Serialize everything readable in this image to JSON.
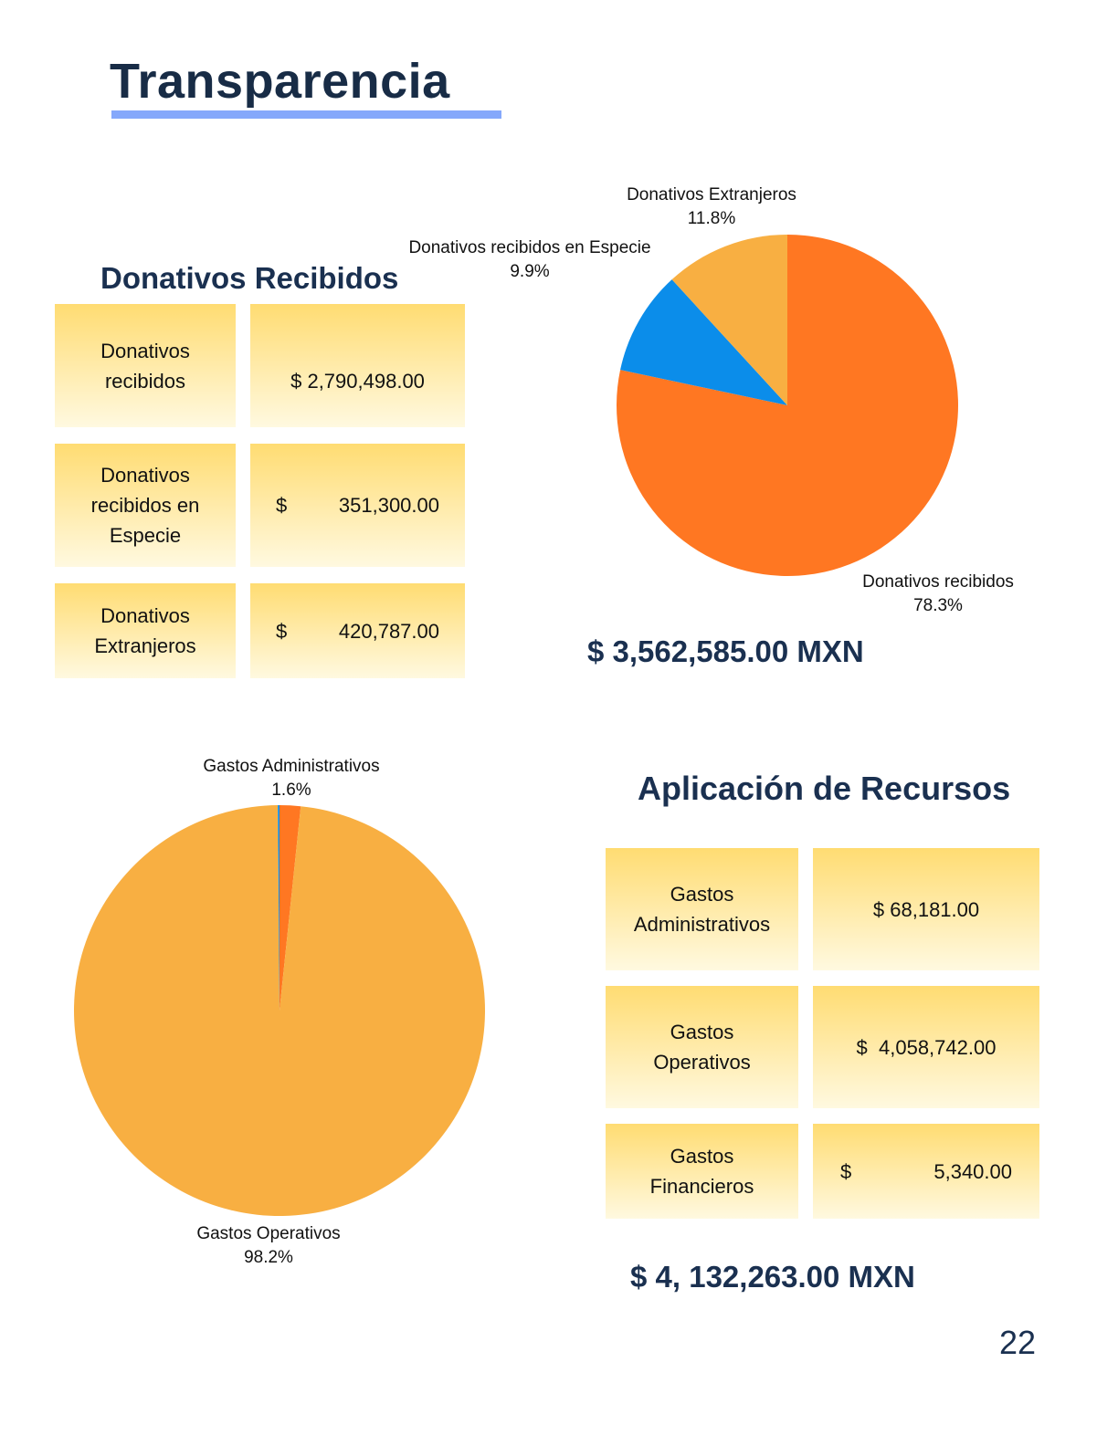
{
  "page_title": "Transparencia",
  "page_number": "22",
  "donativos": {
    "heading": "Donativos Recibidos",
    "rows": [
      {
        "label": "Donativos recibidos",
        "currency": "$",
        "amount": "2,790,498.00"
      },
      {
        "label": "Donativos recibidos en Especie",
        "currency": "$",
        "amount": "351,300.00"
      },
      {
        "label": "Donativos Extranjeros",
        "currency": "$",
        "amount": "420,787.00"
      }
    ],
    "total": "$ 3,562,585.00 MXN"
  },
  "aplicacion": {
    "heading": "Aplicación de Recursos",
    "rows": [
      {
        "label": "Gastos Administrativos",
        "currency": "$",
        "amount": "68,181.00"
      },
      {
        "label": "Gastos Operativos",
        "currency": "$",
        "amount": "4,058,742.00"
      },
      {
        "label": "Gastos Financieros",
        "currency": "$",
        "amount": "5,340.00"
      }
    ],
    "total": "$ 4, 132,263.00 MXN"
  },
  "colors": {
    "title": "#182c46",
    "underline": "#85a8fb",
    "orange": "#ff7722",
    "blue": "#0b8dea",
    "light_orange": "#f8af42"
  },
  "chart_data": [
    {
      "type": "pie",
      "start": "top-clockwise",
      "slices": [
        {
          "name": "Donativos recibidos",
          "value": 2790498,
          "label": "78.3%",
          "color": "#ff7722"
        },
        {
          "name": "Donativos recibidos en Especie",
          "value": 351300,
          "label": "9.9%",
          "color": "#0b8dea"
        },
        {
          "name": "Donativos Extranjeros",
          "value": 420787,
          "label": "11.8%",
          "color": "#f8af42"
        }
      ]
    },
    {
      "type": "pie",
      "start": "top-clockwise",
      "slices": [
        {
          "name": "Gastos Administrativos",
          "value": 68181,
          "label": "1.6%",
          "color": "#ff7722"
        },
        {
          "name": "Gastos Operativos",
          "value": 4058742,
          "label": "98.2%",
          "color": "#f8af42"
        },
        {
          "name": "Gastos Financieros",
          "value": 5340,
          "label": "",
          "color": "#0b8dea"
        }
      ]
    }
  ]
}
